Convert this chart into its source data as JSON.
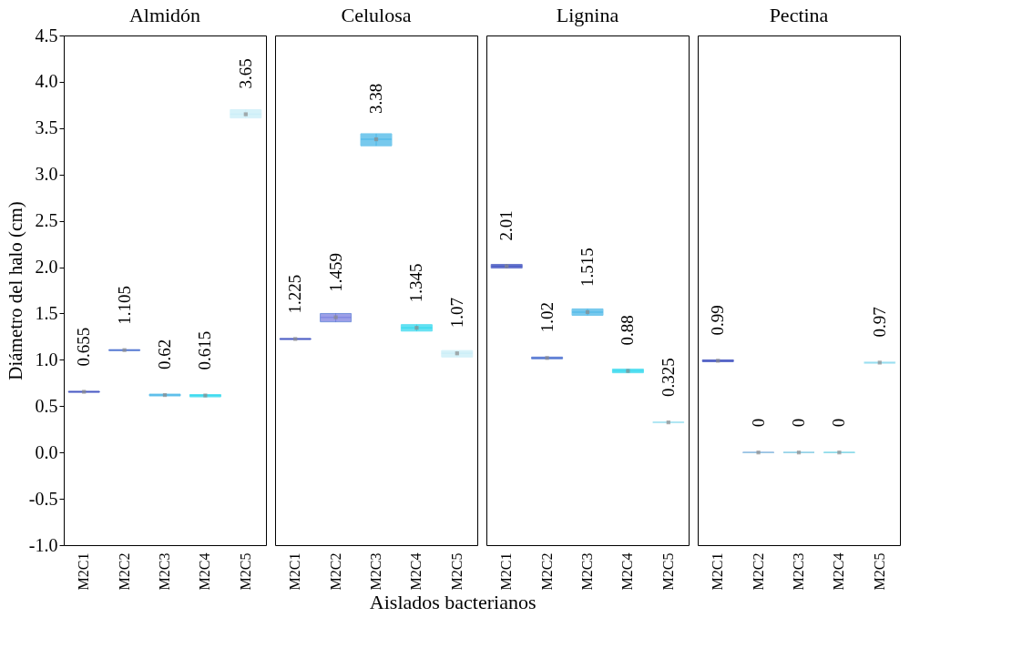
{
  "chart_data": [
    {
      "type": "box",
      "title": "Almidón",
      "ylabel": "Diámetro del halo (cm)",
      "xlabel": "Aislados bacterianos",
      "categories": [
        "M2C1",
        "M2C2",
        "M2C3",
        "M2C4",
        "M2C5"
      ],
      "colors": [
        "#3d4fbf",
        "#4a6fd0",
        "#4ab8e8",
        "#2fd8ee",
        "#c9eef8"
      ],
      "boxes": [
        {
          "low": 0.65,
          "q1": 0.65,
          "median": 0.655,
          "q3": 0.66,
          "high": 0.66,
          "mean": 0.655
        },
        {
          "low": 1.1,
          "q1": 1.1,
          "median": 1.105,
          "q3": 1.11,
          "high": 1.11,
          "mean": 1.105
        },
        {
          "low": 0.61,
          "q1": 0.61,
          "median": 0.62,
          "q3": 0.63,
          "high": 0.63,
          "mean": 0.62
        },
        {
          "low": 0.6,
          "q1": 0.6,
          "median": 0.615,
          "q3": 0.625,
          "high": 0.625,
          "mean": 0.615
        },
        {
          "low": 3.61,
          "q1": 3.61,
          "median": 3.65,
          "q3": 3.7,
          "high": 3.7,
          "mean": 3.65
        }
      ],
      "value_labels": [
        "0.655",
        "1.105",
        "0.62",
        "0.615",
        "3.65"
      ],
      "ylim": [
        -1.0,
        4.5
      ],
      "yticks": [
        {
          "value": -1.0,
          "label": "-1.0"
        },
        {
          "value": -0.5,
          "label": "-0.5"
        },
        {
          "value": 0,
          "label": "0.0"
        },
        {
          "value": 0.5,
          "label": "0.5"
        },
        {
          "value": 1.0,
          "label": "1.0"
        },
        {
          "value": 1.5,
          "label": "1.5"
        },
        {
          "value": 2.0,
          "label": "2.0"
        },
        {
          "value": 2.5,
          "label": "2.5"
        },
        {
          "value": 3.0,
          "label": "3.0"
        },
        {
          "value": 3.5,
          "label": "3.5"
        },
        {
          "value": 4.0,
          "label": "4.0"
        },
        {
          "value": 4.5,
          "label": "4.5"
        }
      ],
      "grid": false
    },
    {
      "type": "box",
      "title": "Celulosa",
      "tick_labels": "x",
      "categories": [
        "M2C1",
        "M2C2",
        "M2C3",
        "M2C4",
        "M2C5"
      ],
      "colors": [
        "#3d4fbf",
        "#7b80e0",
        "#4ab8e8",
        "#2fd8ee",
        "#c9eef8"
      ],
      "boxes": [
        {
          "low": 1.22,
          "q1": 1.22,
          "median": 1.225,
          "q3": 1.23,
          "high": 1.23,
          "mean": 1.225
        },
        {
          "low": 1.41,
          "q1": 1.41,
          "median": 1.459,
          "q3": 1.5,
          "high": 1.5,
          "mean": 1.459
        },
        {
          "low": 3.31,
          "q1": 3.31,
          "median": 3.38,
          "q3": 3.44,
          "high": 3.44,
          "mean": 3.38
        },
        {
          "low": 1.31,
          "q1": 1.31,
          "median": 1.345,
          "q3": 1.38,
          "high": 1.38,
          "mean": 1.345
        },
        {
          "low": 1.03,
          "q1": 1.03,
          "median": 1.07,
          "q3": 1.1,
          "high": 1.1,
          "mean": 1.07
        }
      ],
      "value_labels": [
        "1.225",
        "1.459",
        "3.38",
        "1.345",
        "1.07"
      ],
      "ylim": [
        -1.0,
        4.5
      ],
      "grid": false
    },
    {
      "type": "box",
      "title": "Lignina",
      "tick_labels": "x",
      "categories": [
        "M2C1",
        "M2C2",
        "M2C3",
        "M2C4",
        "M2C5"
      ],
      "colors": [
        "#3d4fbf",
        "#4a6fd0",
        "#4ab8e8",
        "#2fd8ee",
        "#8fdcee"
      ],
      "boxes": [
        {
          "low": 1.99,
          "q1": 1.99,
          "median": 2.01,
          "q3": 2.03,
          "high": 2.03,
          "mean": 2.01
        },
        {
          "low": 1.01,
          "q1": 1.01,
          "median": 1.02,
          "q3": 1.03,
          "high": 1.03,
          "mean": 1.02
        },
        {
          "low": 1.48,
          "q1": 1.48,
          "median": 1.515,
          "q3": 1.55,
          "high": 1.55,
          "mean": 1.515
        },
        {
          "low": 0.86,
          "q1": 0.86,
          "median": 0.88,
          "q3": 0.9,
          "high": 0.9,
          "mean": 0.88
        },
        {
          "low": 0.32,
          "q1": 0.32,
          "median": 0.325,
          "q3": 0.33,
          "high": 0.33,
          "mean": 0.325
        }
      ],
      "value_labels": [
        "2.01",
        "1.02",
        "1.515",
        "0.88",
        "0.325"
      ],
      "ylim": [
        -1.0,
        4.5
      ],
      "grid": false
    },
    {
      "type": "box",
      "title": "Pectina",
      "tick_labels": "x",
      "categories": [
        "M2C1",
        "M2C2",
        "M2C3",
        "M2C4",
        "M2C5"
      ],
      "colors": [
        "#3d4fbf",
        "#9fd6e4",
        "#9fd6e4",
        "#9fd6e4",
        "#8fdcee"
      ],
      "boxes": [
        {
          "low": 0.98,
          "q1": 0.98,
          "median": 0.99,
          "q3": 1.0,
          "high": 1.0,
          "mean": 0.99
        },
        {
          "low": 0,
          "q1": 0,
          "median": 0,
          "q3": 0,
          "high": 0,
          "mean": 0
        },
        {
          "low": 0,
          "q1": 0,
          "median": 0,
          "q3": 0,
          "high": 0,
          "mean": 0
        },
        {
          "low": 0,
          "q1": 0,
          "median": 0,
          "q3": 0,
          "high": 0,
          "mean": 0
        },
        {
          "low": 0.96,
          "q1": 0.96,
          "median": 0.97,
          "q3": 0.98,
          "high": 0.98,
          "mean": 0.97
        }
      ],
      "value_labels": [
        "0.99",
        "0",
        "0",
        "0",
        "0.97"
      ],
      "ylim": [
        -1.0,
        4.5
      ],
      "grid": false
    }
  ]
}
